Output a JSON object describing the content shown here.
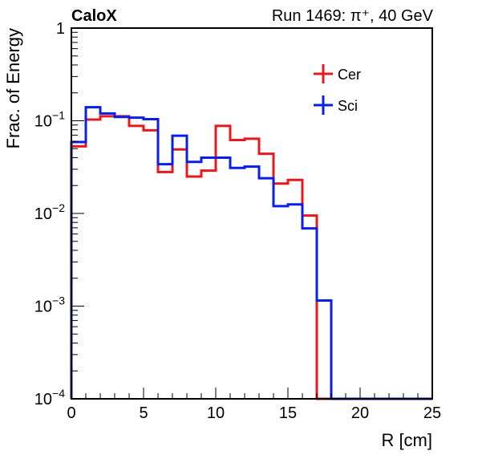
{
  "chart_data": {
    "type": "line",
    "style": "step-histogram",
    "title_left": "CaloX",
    "title_right": "Run 1469:   π⁺, 40 GeV",
    "xlabel": "R [cm]",
    "ylabel": "Frac. of Energy",
    "xlim": [
      0,
      25
    ],
    "ylim": [
      0.0001,
      1
    ],
    "yscale": "log",
    "grid": false,
    "legend_position": "top-right",
    "x_ticks": [
      {
        "value": 0,
        "label": "0"
      },
      {
        "value": 5,
        "label": "5"
      },
      {
        "value": 10,
        "label": "10"
      },
      {
        "value": 15,
        "label": "15"
      },
      {
        "value": 20,
        "label": "20"
      },
      {
        "value": 25,
        "label": "25"
      }
    ],
    "y_ticks": [
      {
        "value": 1,
        "base": "1",
        "exp": ""
      },
      {
        "value": 0.1,
        "base": "10",
        "exp": "−1"
      },
      {
        "value": 0.01,
        "base": "10",
        "exp": "−2"
      },
      {
        "value": 0.001,
        "base": "10",
        "exp": "−3"
      },
      {
        "value": 0.0001,
        "base": "10",
        "exp": "−4"
      }
    ],
    "bin_edges": [
      0,
      1,
      2,
      3,
      4,
      5,
      6,
      7,
      8,
      9,
      10,
      11,
      12,
      13,
      14,
      15,
      16,
      17,
      18,
      19,
      20,
      21,
      22,
      23,
      24,
      25
    ],
    "series": [
      {
        "name": "Cer",
        "color": "#e8191c",
        "values": [
          0.053,
          0.103,
          0.112,
          0.112,
          0.088,
          0.079,
          0.028,
          0.049,
          0.025,
          0.029,
          0.088,
          0.062,
          0.064,
          0.044,
          0.021,
          0.023,
          0.0095,
          0,
          0,
          0,
          0,
          0,
          0,
          0,
          0
        ]
      },
      {
        "name": "Sci",
        "color": "#0a1ee6",
        "values": [
          0.059,
          0.14,
          0.12,
          0.11,
          0.108,
          0.104,
          0.034,
          0.069,
          0.036,
          0.04,
          0.04,
          0.031,
          0.032,
          0.024,
          0.012,
          0.0125,
          0.0069,
          0.00115,
          0,
          0,
          0,
          0,
          0,
          0,
          0
        ]
      }
    ]
  }
}
